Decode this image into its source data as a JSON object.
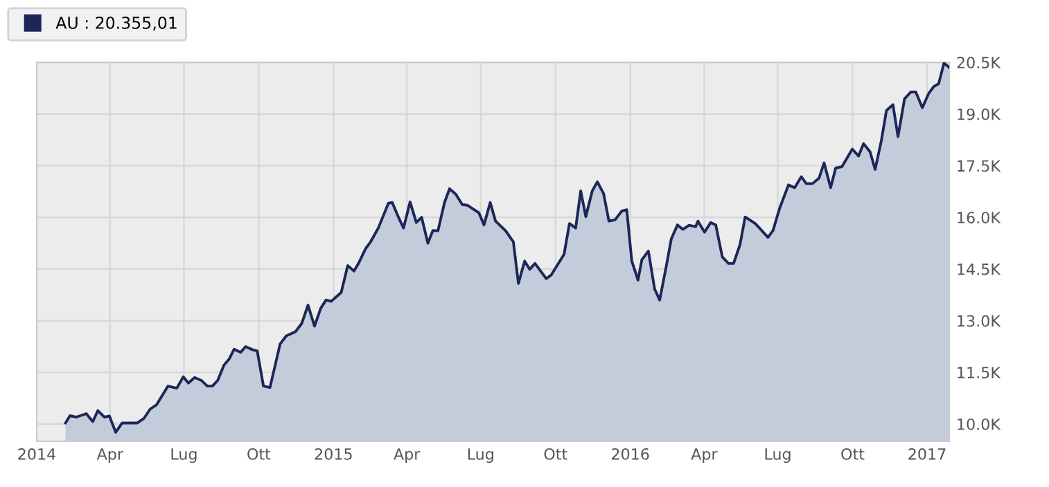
{
  "chart_data": {
    "type": "area",
    "legend": "top left",
    "grid": true,
    "xlim": [
      2014.0,
      2017.075
    ],
    "xticks": [
      {
        "value": 2014.0,
        "label": "2014"
      },
      {
        "value": 2014.247,
        "label": "Apr"
      },
      {
        "value": 2014.496,
        "label": "Lug"
      },
      {
        "value": 2014.748,
        "label": "Ott"
      },
      {
        "value": 2015.0,
        "label": "2015"
      },
      {
        "value": 2015.247,
        "label": "Apr"
      },
      {
        "value": 2015.496,
        "label": "Lug"
      },
      {
        "value": 2015.748,
        "label": "Ott"
      },
      {
        "value": 2016.0,
        "label": "2016"
      },
      {
        "value": 2016.249,
        "label": "Apr"
      },
      {
        "value": 2016.497,
        "label": "Lug"
      },
      {
        "value": 2016.749,
        "label": "Ott"
      },
      {
        "value": 2017.0,
        "label": "2017"
      }
    ],
    "ylim": [
      9500,
      20500
    ],
    "yticks": [
      {
        "value": 10000,
        "label": "10.0K"
      },
      {
        "value": 11500,
        "label": "11.5K"
      },
      {
        "value": 13000,
        "label": "13.0K"
      },
      {
        "value": 14500,
        "label": "14.5K"
      },
      {
        "value": 16000,
        "label": "16.0K"
      },
      {
        "value": 17500,
        "label": "17.5K"
      },
      {
        "value": 19000,
        "label": "19.0K"
      },
      {
        "value": 20500,
        "label": "20.5K"
      }
    ],
    "series": [
      {
        "name": "AU : 20.355,01",
        "color": "#1c2657",
        "x": [
          2014.097,
          2014.112,
          2014.133,
          2014.167,
          2014.189,
          2014.206,
          2014.228,
          2014.245,
          2014.266,
          2014.288,
          2014.339,
          2014.361,
          2014.382,
          2014.404,
          2014.442,
          2014.472,
          2014.494,
          2014.511,
          2014.532,
          2014.554,
          2014.575,
          2014.592,
          2014.61,
          2014.631,
          2014.648,
          2014.665,
          2014.687,
          2014.704,
          2014.726,
          2014.743,
          2014.764,
          2014.786,
          2014.82,
          2014.841,
          2014.872,
          2014.893,
          2014.914,
          2014.936,
          2014.957,
          2014.975,
          2014.992,
          2015.026,
          2015.048,
          2015.069,
          2015.086,
          2015.108,
          2015.125,
          2015.151,
          2015.185,
          2015.198,
          2015.219,
          2015.236,
          2015.258,
          2015.279,
          2015.297,
          2015.318,
          2015.335,
          2015.352,
          2015.374,
          2015.391,
          2015.412,
          2015.434,
          2015.451,
          2015.49,
          2015.507,
          2015.528,
          2015.546,
          2015.58,
          2015.606,
          2015.623,
          2015.644,
          2015.661,
          2015.679,
          2015.717,
          2015.734,
          2015.777,
          2015.795,
          2015.816,
          2015.833,
          2015.85,
          2015.872,
          2015.889,
          2015.91,
          2015.928,
          2015.949,
          2015.971,
          2015.988,
          2016.005,
          2016.026,
          2016.039,
          2016.061,
          2016.082,
          2016.099,
          2016.121,
          2016.138,
          2016.159,
          2016.177,
          2016.198,
          2016.22,
          2016.228,
          2016.25,
          2016.271,
          2016.288,
          2016.31,
          2016.331,
          2016.348,
          2016.37,
          2016.387,
          2016.421,
          2016.464,
          2016.481,
          2016.503,
          2016.533,
          2016.554,
          2016.576,
          2016.593,
          2016.614,
          2016.636,
          2016.653,
          2016.675,
          2016.692,
          2016.713,
          2016.748,
          2016.769,
          2016.786,
          2016.808,
          2016.825,
          2016.846,
          2016.863,
          2016.885,
          2016.902,
          2016.924,
          2016.945,
          2016.962,
          2016.984,
          2017.005,
          2017.022,
          2017.039,
          2017.057,
          2017.074
        ],
        "values": [
          10030,
          10240,
          10200,
          10300,
          10070,
          10390,
          10200,
          10230,
          9760,
          10030,
          10030,
          10160,
          10430,
          10560,
          11100,
          11040,
          11370,
          11190,
          11350,
          11270,
          11100,
          11100,
          11270,
          11710,
          11880,
          12170,
          12080,
          12250,
          12160,
          12120,
          11100,
          11060,
          12320,
          12560,
          12680,
          12920,
          13450,
          12840,
          13360,
          13600,
          13560,
          13820,
          14600,
          14440,
          14690,
          15090,
          15290,
          15690,
          16410,
          16430,
          16000,
          15690,
          16450,
          15850,
          16000,
          15250,
          15620,
          15610,
          16430,
          16830,
          16670,
          16370,
          16350,
          16130,
          15780,
          16430,
          15890,
          15610,
          15290,
          14080,
          14730,
          14490,
          14660,
          14220,
          14330,
          14930,
          15820,
          15690,
          16770,
          16020,
          16770,
          17030,
          16690,
          15890,
          15930,
          16180,
          16220,
          14730,
          14180,
          14770,
          15020,
          13920,
          13600,
          14570,
          15370,
          15780,
          15650,
          15770,
          15730,
          15890,
          15570,
          15850,
          15780,
          14850,
          14660,
          14660,
          15220,
          16010,
          15820,
          15420,
          15620,
          16260,
          16940,
          16860,
          17180,
          16980,
          16980,
          17140,
          17580,
          16860,
          17430,
          17470,
          17980,
          17780,
          18140,
          17900,
          17390,
          18230,
          19100,
          19270,
          18340,
          19440,
          19640,
          19640,
          19180,
          19590,
          19790,
          19880,
          20480,
          20355
        ]
      }
    ]
  }
}
